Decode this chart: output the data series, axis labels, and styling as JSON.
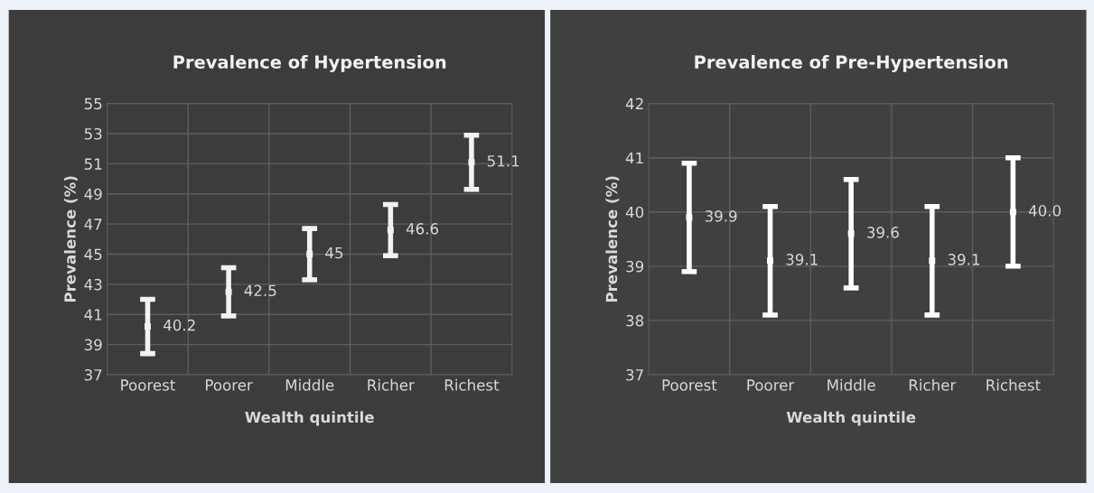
{
  "chart_data": [
    {
      "type": "scatter",
      "title": "Prevalence of Hypertension",
      "xlabel": "Wealth quintile",
      "ylabel": "Prevalence (%)",
      "categories": [
        "Poorest",
        "Poorer",
        "Middle",
        "Richer",
        "Richest"
      ],
      "series": [
        {
          "color": "#f2f2f2",
          "values": [
            40.2,
            42.5,
            45,
            46.6,
            51.1
          ],
          "errors": [
            [
              38.4,
              42.0
            ],
            [
              40.9,
              44.1
            ],
            [
              43.3,
              46.7
            ],
            [
              44.9,
              48.3
            ],
            [
              49.3,
              52.9
            ]
          ],
          "value_labels": [
            "40.2",
            "42.5",
            "45",
            "46.6",
            "51.1"
          ]
        }
      ],
      "ylim": [
        37,
        55
      ],
      "yticks": [
        37,
        39,
        41,
        43,
        45,
        47,
        49,
        51,
        53,
        55
      ],
      "grid": true,
      "marker": "square"
    },
    {
      "type": "scatter",
      "title": "Prevalence of Pre-Hypertension",
      "xlabel": "Wealth quintile",
      "ylabel": "Prevalence (%)",
      "categories": [
        "Poorest",
        "Poorer",
        "Middle",
        "Richer",
        "Richest"
      ],
      "series": [
        {
          "color": "#ffffff",
          "values": [
            39.9,
            39.1,
            39.6,
            39.1,
            40.0
          ],
          "errors": [
            [
              38.9,
              40.9
            ],
            [
              38.1,
              40.1
            ],
            [
              38.6,
              40.6
            ],
            [
              38.1,
              40.1
            ],
            [
              39.0,
              41.0
            ]
          ],
          "value_labels": [
            "39.9",
            "39.1",
            "39.6",
            "39.1",
            "40.0"
          ]
        }
      ],
      "ylim": [
        37,
        42
      ],
      "yticks": [
        37,
        38,
        39,
        40,
        41,
        42
      ],
      "grid": true,
      "marker": "square"
    }
  ]
}
